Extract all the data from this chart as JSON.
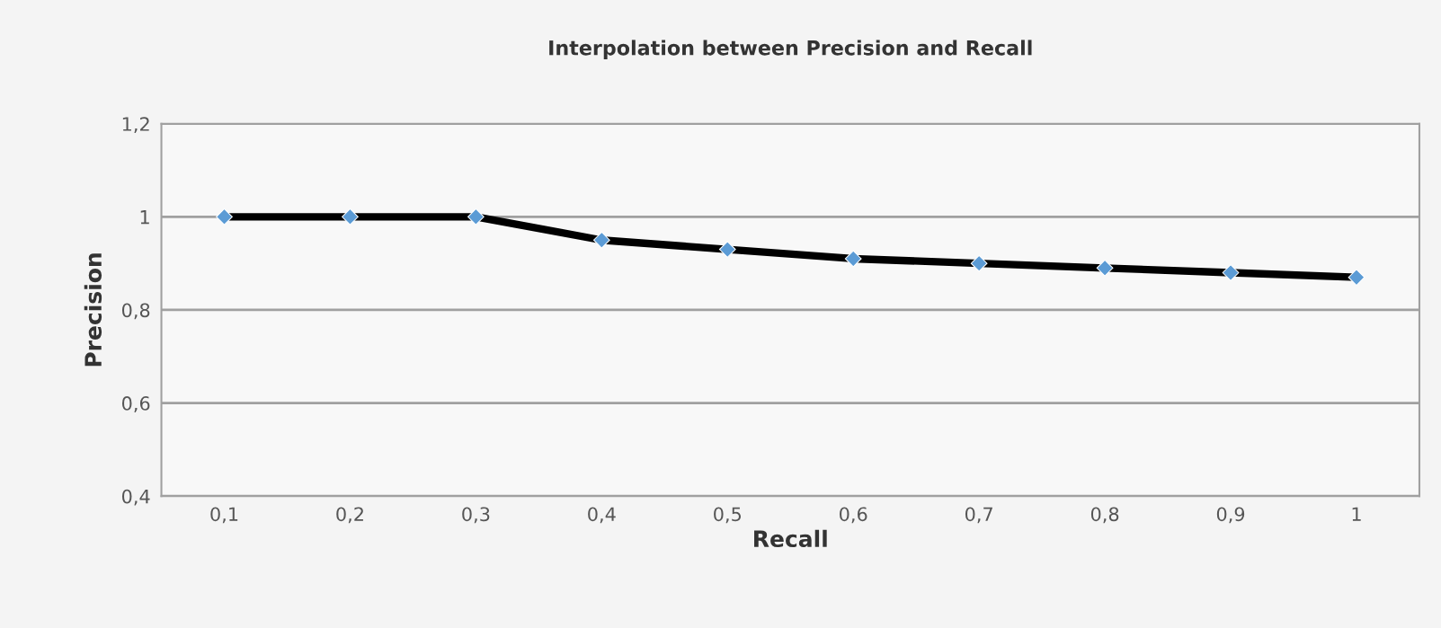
{
  "chart_data": {
    "type": "line",
    "title": "Interpolation between Precision and Recall",
    "xlabel": "Recall",
    "ylabel": "Precision",
    "categories": [
      "0,1",
      "0,2",
      "0,3",
      "0,4",
      "0,5",
      "0,6",
      "0,7",
      "0,8",
      "0,9",
      "1"
    ],
    "series": [
      {
        "color": "#000000",
        "values": [
          1,
          1,
          1,
          0.95,
          0.93,
          0.91,
          0.9,
          0.89,
          0.88,
          0.87
        ]
      }
    ],
    "ylim": [
      0.4,
      1.2
    ],
    "yticks": [
      {
        "value": 0.4,
        "label": "0,4"
      },
      {
        "value": 0.6,
        "label": "0,6"
      },
      {
        "value": 0.8,
        "label": "0,8"
      },
      {
        "value": 1,
        "label": "1"
      },
      {
        "value": 1.2,
        "label": "1,2"
      }
    ],
    "grid": "y",
    "marker": "diamond",
    "line_style": "solid"
  }
}
